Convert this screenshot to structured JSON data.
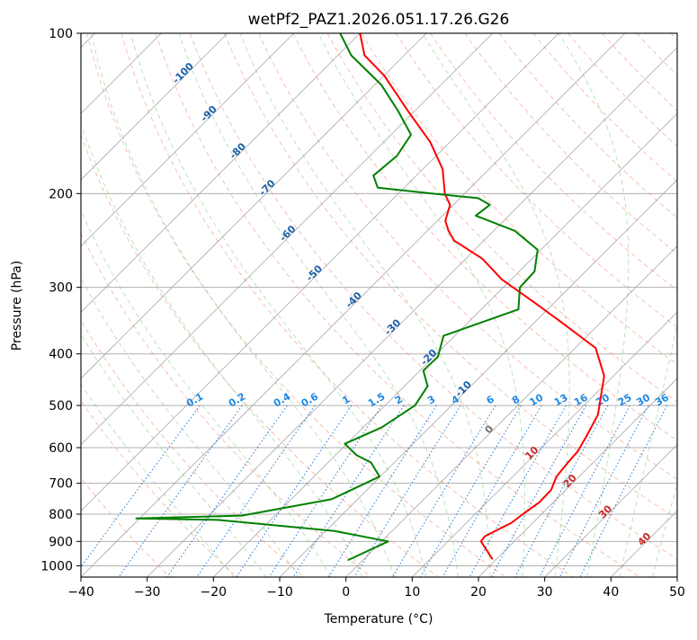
{
  "chart_data": {
    "type": "line",
    "title": "wetPf2_PAZ1.2026.051.17.26.G26",
    "xlabel": "Temperature (°C)",
    "ylabel": "Pressure (hPa)",
    "xlim": [
      -40,
      50
    ],
    "ylim": [
      1050,
      100
    ],
    "y_scale": "log",
    "skew": true,
    "grid": true,
    "x_ticks": [
      -40,
      -30,
      -20,
      -10,
      0,
      10,
      20,
      30,
      40,
      50
    ],
    "y_ticks": [
      100,
      200,
      300,
      400,
      500,
      600,
      700,
      800,
      900,
      1000
    ],
    "series": [
      {
        "color": "#ff0000",
        "x": [
          19.3,
          15.0,
          14.8,
          16.8,
          17.2,
          17.9,
          17.8,
          16.6,
          16.2,
          16.0,
          15.0,
          13.5,
          8.6,
          3.1,
          -5.7,
          -13.1,
          -21.4,
          -27.5,
          -34.5,
          -36.8,
          -38.8,
          -40.5,
          -43.0,
          -47.0,
          -53.0,
          -61.0,
          -70.0,
          -76.0,
          -80.0
        ],
        "y": [
          970,
          900,
          880,
          830,
          800,
          760,
          720,
          680,
          640,
          610,
          570,
          520,
          440,
          390,
          350,
          320,
          290,
          265,
          245,
          235,
          225,
          210,
          200,
          180,
          160,
          140,
          120,
          110,
          100
        ]
      },
      {
        "color": "#008000",
        "x": [
          -2.2,
          1.0,
          -8.8,
          -28.0,
          -40.5,
          -25.0,
          -13.9,
          -10.1,
          -13.5,
          -16.8,
          -20.3,
          -17.2,
          -15.5,
          -16.5,
          -19.5,
          -19.4,
          -21.7,
          -14.4,
          -17.5,
          -17.7,
          -20.5,
          -26.8,
          -35.0,
          -34.5,
          -37.3,
          -45.0,
          -54.0,
          -56.5,
          -55.9,
          -57.0,
          -62.5,
          -69.0,
          -78.0,
          -83.0
        ],
        "y": [
          975,
          900,
          860,
          820,
          815,
          805,
          750,
          680,
          640,
          620,
          590,
          550,
          500,
          460,
          430,
          405,
          370,
          330,
          300,
          280,
          255,
          235,
          220,
          210,
          204,
          200,
          195,
          185,
          170,
          155,
          140,
          125,
          110,
          100
        ]
      }
    ],
    "isotherm_labels": [
      "-100",
      "-90",
      "-80",
      "-70",
      "-60",
      "-50",
      "-40",
      "-30",
      "-20",
      "-10",
      "0",
      "10",
      "20",
      "30",
      "40"
    ],
    "mixing_ratio_labels": [
      "0.1",
      "0.2",
      "0.4",
      "0.6",
      "1",
      "1.5",
      "2",
      "3",
      "4",
      "6",
      "8",
      "10",
      "13",
      "16",
      "20",
      "25",
      "30",
      "36"
    ]
  }
}
